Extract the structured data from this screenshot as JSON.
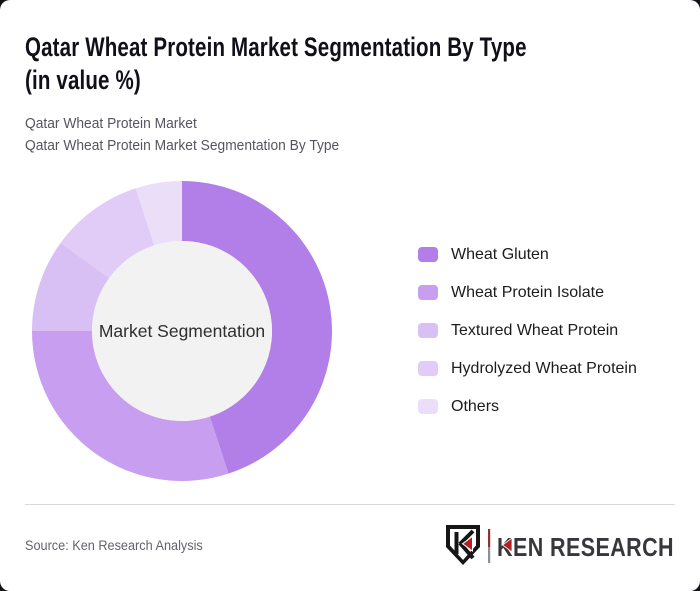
{
  "page": {
    "title_line1": "Qatar Wheat Protein Market Segmentation By Type",
    "title_line2": "(in value %)",
    "subtitle_line1": "Qatar Wheat Protein Market",
    "subtitle_line2": "Qatar Wheat Protein Market Segmentation By Type",
    "source_text": "Source: Ken Research Analysis"
  },
  "logo": {
    "brand_text": "KEN RESEARCH",
    "monogram_letter": "K",
    "accent_color": "#b61f24",
    "text_color": "#38383c"
  },
  "chart_data": {
    "type": "pie",
    "subtype": "donut",
    "title": "Qatar Wheat Protein Market Segmentation By Type (in value %)",
    "unit": "value %",
    "center_label": "Market Segmentation",
    "start_angle_deg": 0,
    "direction": "clockwise",
    "inner_radius_ratio": 0.6,
    "hole_fill": "#f2f2f2",
    "legend_position": "right",
    "segments": [
      {
        "label": "Wheat Gluten",
        "value": 45,
        "color": "#b27fe8"
      },
      {
        "label": "Wheat Protein Isolate",
        "value": 30,
        "color": "#c89ef0"
      },
      {
        "label": "Textured Wheat Protein",
        "value": 10,
        "color": "#d9c0f4"
      },
      {
        "label": "Hydrolyzed Wheat Protein",
        "value": 10,
        "color": "#e0ccf6"
      },
      {
        "label": "Others",
        "value": 5,
        "color": "#eadef9"
      }
    ]
  }
}
